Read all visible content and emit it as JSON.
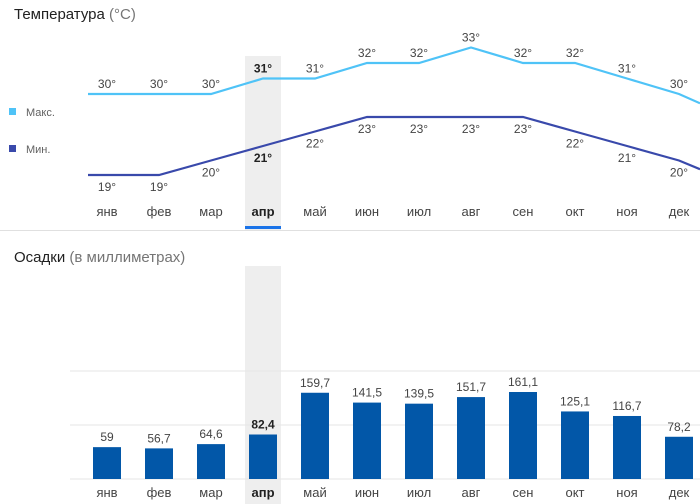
{
  "temperature": {
    "title": "Температура",
    "unit": "(°C)",
    "legend": [
      {
        "name": "Макс.",
        "color": "#4fc3f7"
      },
      {
        "name": "Мин.",
        "color": "#3949ab"
      }
    ]
  },
  "precipitation": {
    "title": "Осадки",
    "unit": "(в миллиметрах)",
    "bar_color": "#0257a8"
  },
  "selected_month_index": 3,
  "chart_data": [
    {
      "type": "line",
      "title": "Температура (°C)",
      "categories": [
        "янв",
        "фев",
        "мар",
        "апр",
        "май",
        "июн",
        "июл",
        "авг",
        "сен",
        "окт",
        "ноя",
        "дек"
      ],
      "series": [
        {
          "name": "Макс.",
          "values": [
            30,
            30,
            30,
            31,
            31,
            32,
            32,
            33,
            32,
            32,
            31,
            30
          ],
          "labels": [
            "30°",
            "30°",
            "30°",
            "31°",
            "31°",
            "32°",
            "32°",
            "33°",
            "32°",
            "32°",
            "31°",
            "30°"
          ]
        },
        {
          "name": "Мин.",
          "values": [
            19,
            19,
            20,
            21,
            22,
            23,
            23,
            23,
            23,
            22,
            21,
            20
          ],
          "labels": [
            "19°",
            "19°",
            "20°",
            "21°",
            "22°",
            "23°",
            "23°",
            "23°",
            "23°",
            "22°",
            "21°",
            "20°"
          ]
        }
      ],
      "xlabel": "",
      "ylabel": ""
    },
    {
      "type": "bar",
      "title": "Осадки (в миллиметрах)",
      "categories": [
        "янв",
        "фев",
        "мар",
        "апр",
        "май",
        "июн",
        "июл",
        "авг",
        "сен",
        "окт",
        "ноя",
        "дек"
      ],
      "values": [
        59,
        56.7,
        64.6,
        82.4,
        159.7,
        141.5,
        139.5,
        151.7,
        161.1,
        125.1,
        116.7,
        78.2
      ],
      "value_labels": [
        "59",
        "56,7",
        "64,6",
        "82,4",
        "159,7",
        "141,5",
        "139,5",
        "151,7",
        "161,1",
        "125,1",
        "116,7",
        "78,2"
      ],
      "ylim": [
        0,
        250
      ],
      "grid": true,
      "xlabel": "",
      "ylabel": ""
    }
  ]
}
